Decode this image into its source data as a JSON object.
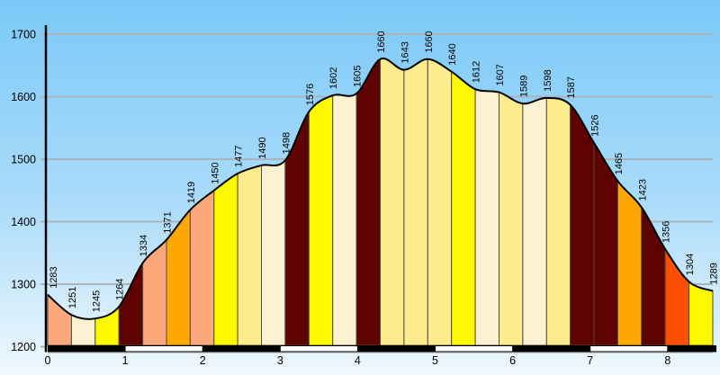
{
  "chart_data": {
    "type": "area",
    "title": "",
    "xlabel": "",
    "ylabel": "",
    "x_ticks": [
      0,
      1,
      2,
      3,
      4,
      5,
      6,
      7,
      8
    ],
    "y_ticks": [
      1200,
      1300,
      1400,
      1500,
      1600,
      1700
    ],
    "ylim": [
      1200,
      1750
    ],
    "xlim_km": [
      0,
      8.5
    ],
    "grid": true,
    "legend": "none",
    "points": [
      {
        "km": 0.0,
        "elev": 1283
      },
      {
        "km": 0.3,
        "elev": 1251
      },
      {
        "km": 0.6,
        "elev": 1245
      },
      {
        "km": 0.9,
        "elev": 1264
      },
      {
        "km": 1.2,
        "elev": 1334
      },
      {
        "km": 1.5,
        "elev": 1371
      },
      {
        "km": 1.8,
        "elev": 1419
      },
      {
        "km": 2.1,
        "elev": 1450
      },
      {
        "km": 2.4,
        "elev": 1477
      },
      {
        "km": 2.7,
        "elev": 1490
      },
      {
        "km": 3.0,
        "elev": 1498
      },
      {
        "km": 3.3,
        "elev": 1576
      },
      {
        "km": 3.6,
        "elev": 1602
      },
      {
        "km": 3.9,
        "elev": 1605
      },
      {
        "km": 4.2,
        "elev": 1660
      },
      {
        "km": 4.5,
        "elev": 1643
      },
      {
        "km": 4.8,
        "elev": 1660
      },
      {
        "km": 5.1,
        "elev": 1640
      },
      {
        "km": 5.4,
        "elev": 1612
      },
      {
        "km": 5.7,
        "elev": 1607
      },
      {
        "km": 6.0,
        "elev": 1589
      },
      {
        "km": 6.3,
        "elev": 1598
      },
      {
        "km": 6.6,
        "elev": 1587
      },
      {
        "km": 6.9,
        "elev": 1526
      },
      {
        "km": 7.2,
        "elev": 1465
      },
      {
        "km": 7.5,
        "elev": 1423
      },
      {
        "km": 7.8,
        "elev": 1356
      },
      {
        "km": 8.1,
        "elev": 1304
      },
      {
        "km": 8.4,
        "elev": 1289
      }
    ],
    "segment_colors": [
      "salmon",
      "cream",
      "yellow",
      "maroon",
      "salmon",
      "orange",
      "salmon",
      "yellow",
      "pale",
      "cream",
      "maroon",
      "yellow",
      "cream",
      "maroon",
      "pale",
      "pale",
      "pale",
      "yellow",
      "cream",
      "pale",
      "cream",
      "pale",
      "maroon",
      "maroon",
      "orange",
      "maroon",
      "orangered",
      "yellow"
    ],
    "palette": {
      "salmon": "#FCA77C",
      "cream": "#FCF1D0",
      "yellow": "#FEF900",
      "pale": "#FEEC8D",
      "maroon": "#5E0202",
      "orange": "#FEA702",
      "orangered": "#FD4F03"
    },
    "colors": {
      "sky_top": "#7AC9F8",
      "sky_mid": "#ACDCFA",
      "sky_bottom": "#F0F8FE",
      "gridline": "#A9B5BE",
      "curve": "#000000",
      "divider": "#4B4B3F",
      "axis": "#000000",
      "bar_black": "#000000",
      "bar_white": "#FFFFFF",
      "bar_shadow": "#BFC8CE",
      "label": "#000000"
    }
  }
}
